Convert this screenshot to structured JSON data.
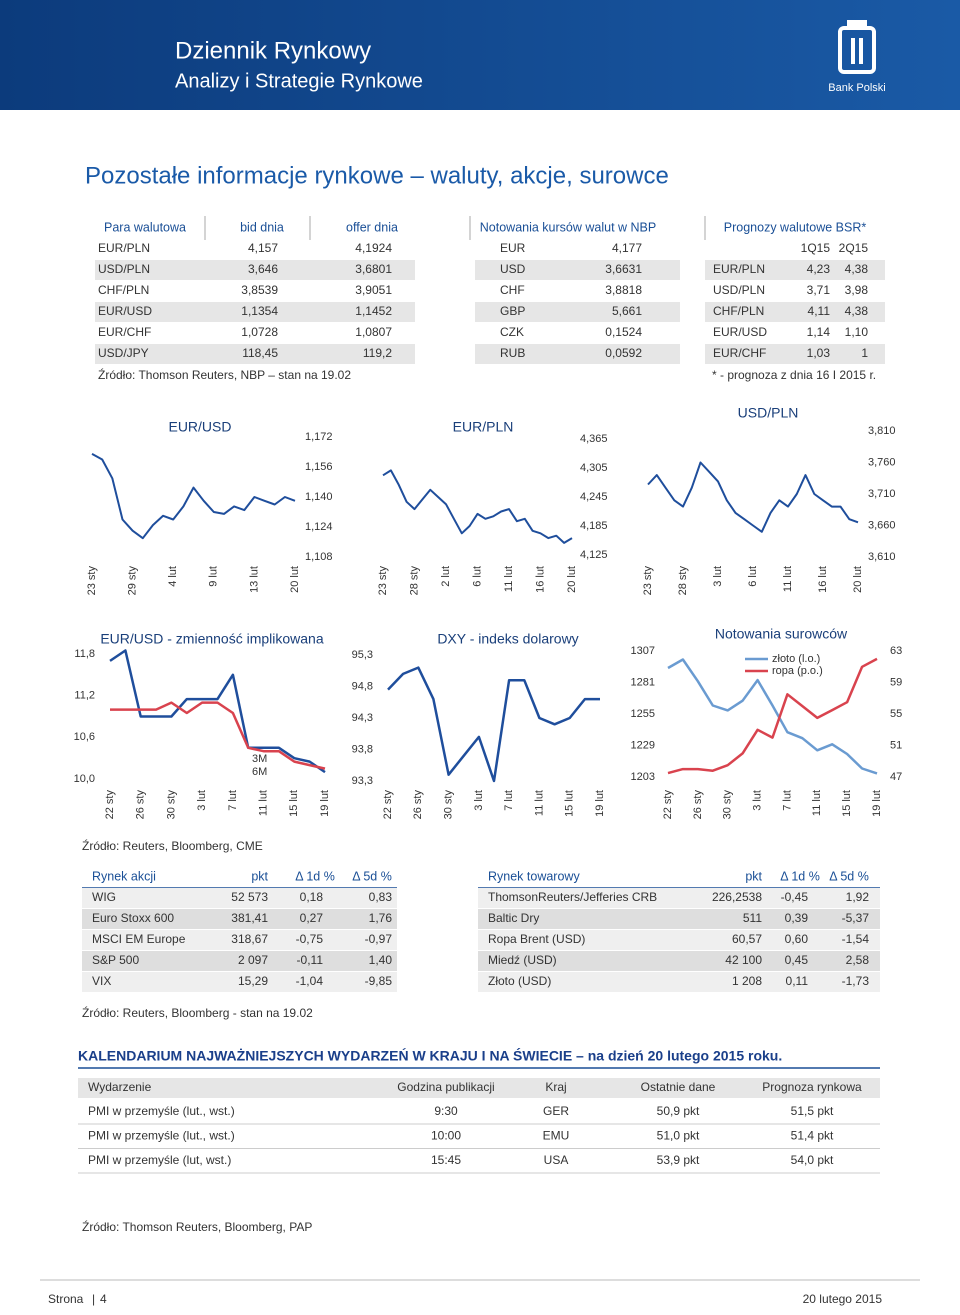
{
  "header": {
    "title": "Dziennik Rynkowy",
    "subtitle": "Analizy i Strategie Rynkowe",
    "bank": "Bank Polski"
  },
  "page_title": "Pozostałe informacje rynkowe – waluty, akcje, surowce",
  "fx_table": {
    "columns": [
      "Para walutowa",
      "bid dnia",
      "offer dnia"
    ],
    "rows": [
      [
        "EUR/PLN",
        "4,157",
        "4,1924"
      ],
      [
        "USD/PLN",
        "3,646",
        "3,6801"
      ],
      [
        "CHF/PLN",
        "3,8539",
        "3,9051"
      ],
      [
        "EUR/USD",
        "1,1354",
        "1,1452"
      ],
      [
        "EUR/CHF",
        "1,0728",
        "1,0807"
      ],
      [
        "USD/JPY",
        "118,45",
        "119,2"
      ]
    ]
  },
  "nbp_table": {
    "title": "Notowania kursów walut w NBP",
    "rows": [
      [
        "EUR",
        "4,177"
      ],
      [
        "USD",
        "3,6631"
      ],
      [
        "CHF",
        "3,8818"
      ],
      [
        "GBP",
        "5,661"
      ],
      [
        "CZK",
        "0,1524"
      ],
      [
        "RUB",
        "0,0592"
      ]
    ]
  },
  "forecast_table": {
    "title": "Prognozy walutowe BSR*",
    "columns": [
      "1Q15",
      "2Q15"
    ],
    "rows": [
      [
        "EUR/PLN",
        "4,23",
        "4,38"
      ],
      [
        "USD/PLN",
        "3,71",
        "3,98"
      ],
      [
        "CHF/PLN",
        "4,11",
        "4,38"
      ],
      [
        "EUR/USD",
        "1,14",
        "1,10"
      ],
      [
        "EUR/CHF",
        "1,03",
        "1"
      ]
    ]
  },
  "source_fx": "Źródło: Thomson Reuters, NBP – stan na 19.02",
  "forecast_note": "* - prognoza z dnia 16 I 2015 r.",
  "chart_data": [
    {
      "type": "line",
      "title": "EUR/USD",
      "categories": [
        "23 sty",
        null,
        null,
        null,
        "29 sty",
        null,
        null,
        null,
        "4 lut",
        null,
        null,
        null,
        "9 lut",
        null,
        null,
        null,
        "13 lut",
        null,
        null,
        null,
        "20 lut"
      ],
      "series": [
        {
          "color": "#1f4e9c",
          "values": [
            1.163,
            1.16,
            1.15,
            1.128,
            1.122,
            1.118,
            1.125,
            1.13,
            1.128,
            1.135,
            1.145,
            1.138,
            1.132,
            1.131,
            1.135,
            1.133,
            1.14,
            1.138,
            1.136,
            1.14,
            1.138
          ]
        }
      ],
      "ylim": [
        1.108,
        1.172
      ],
      "yticks": [
        {
          "value": 1.108,
          "label": "1,108"
        },
        {
          "value": 1.124,
          "label": "1,124"
        },
        {
          "value": 1.14,
          "label": "1,140"
        },
        {
          "value": 1.156,
          "label": "1,156"
        },
        {
          "value": 1.172,
          "label": "1,172"
        }
      ]
    },
    {
      "type": "line",
      "title": "EUR/PLN",
      "categories": [
        "23 sty",
        null,
        null,
        null,
        "28 sty",
        null,
        null,
        null,
        "2 lut",
        null,
        null,
        null,
        "6 lut",
        null,
        null,
        null,
        "11 lut",
        null,
        null,
        null,
        "16 lut",
        null,
        null,
        null,
        "20 lut"
      ],
      "series": [
        {
          "color": "#1f4e9c",
          "values": [
            4.29,
            4.3,
            4.27,
            4.235,
            4.22,
            4.24,
            4.26,
            4.245,
            4.23,
            4.2,
            4.17,
            4.185,
            4.21,
            4.2,
            4.205,
            4.215,
            4.22,
            4.195,
            4.2,
            4.175,
            4.17,
            4.16,
            4.165,
            4.15,
            4.16
          ]
        }
      ],
      "ylim": [
        4.125,
        4.365
      ],
      "yticks": [
        {
          "value": 4.125,
          "label": "4,125"
        },
        {
          "value": 4.185,
          "label": "4,185"
        },
        {
          "value": 4.245,
          "label": "4,245"
        },
        {
          "value": 4.305,
          "label": "4,305"
        },
        {
          "value": 4.365,
          "label": "4,365"
        }
      ]
    },
    {
      "type": "line",
      "title": "USD/PLN",
      "categories": [
        "23 sty",
        null,
        null,
        null,
        "28 sty",
        null,
        null,
        null,
        "3 lut",
        null,
        null,
        null,
        "6 lut",
        null,
        null,
        null,
        "11 lut",
        null,
        null,
        null,
        "16 lut",
        null,
        null,
        null,
        "20 lut"
      ],
      "series": [
        {
          "color": "#1f4e9c",
          "values": [
            3.725,
            3.74,
            3.72,
            3.7,
            3.69,
            3.72,
            3.76,
            3.745,
            3.73,
            3.7,
            3.68,
            3.67,
            3.66,
            3.65,
            3.68,
            3.7,
            3.69,
            3.71,
            3.74,
            3.71,
            3.7,
            3.69,
            3.69,
            3.67,
            3.665
          ]
        }
      ],
      "ylim": [
        3.61,
        3.81
      ],
      "yticks": [
        {
          "value": 3.61,
          "label": "3,610"
        },
        {
          "value": 3.66,
          "label": "3,660"
        },
        {
          "value": 3.71,
          "label": "3,710"
        },
        {
          "value": 3.76,
          "label": "3,760"
        },
        {
          "value": 3.81,
          "label": "3,810"
        }
      ]
    },
    {
      "type": "line",
      "title": "EUR/USD - zmienność implikowana",
      "categories": [
        "22 sty",
        null,
        "26 sty",
        null,
        "30 sty",
        null,
        "3 lut",
        null,
        "7 lut",
        null,
        "11 lut",
        null,
        "15 lut",
        null,
        "19 lut"
      ],
      "series": [
        {
          "name": "3M",
          "color": "#1f4e9c",
          "values": [
            11.7,
            11.85,
            10.9,
            10.9,
            10.9,
            11.15,
            11.15,
            11.15,
            11.5,
            10.45,
            10.45,
            10.45,
            10.3,
            10.25,
            10.1
          ]
        },
        {
          "name": "6M",
          "color": "#d9434e",
          "values": [
            11.0,
            11.0,
            11.0,
            11.0,
            11.1,
            10.95,
            11.1,
            11.1,
            10.95,
            10.45,
            10.4,
            10.4,
            10.25,
            10.2,
            10.15
          ]
        }
      ],
      "ylim": [
        10.0,
        11.8
      ],
      "yticks": [
        {
          "value": 10.0,
          "label": "10,0"
        },
        {
          "value": 10.6,
          "label": "10,6"
        },
        {
          "value": 11.2,
          "label": "11,2"
        },
        {
          "value": 11.8,
          "label": "11,8"
        }
      ]
    },
    {
      "type": "line",
      "title": "DXY - indeks dolarowy",
      "categories": [
        "22 sty",
        null,
        "26 sty",
        null,
        "30 sty",
        null,
        "3 lut",
        null,
        "7 lut",
        null,
        "11 lut",
        null,
        "15 lut",
        null,
        "19 lut"
      ],
      "series": [
        {
          "color": "#1f4e9c",
          "values": [
            94.75,
            95.0,
            95.1,
            94.6,
            93.4,
            93.7,
            94.0,
            93.3,
            94.9,
            94.9,
            94.3,
            94.2,
            94.3,
            94.6,
            94.6
          ]
        }
      ],
      "ylim": [
        93.3,
        95.3
      ],
      "yticks": [
        {
          "value": 93.3,
          "label": "93,3"
        },
        {
          "value": 93.8,
          "label": "93,8"
        },
        {
          "value": 94.3,
          "label": "94,3"
        },
        {
          "value": 94.8,
          "label": "94,8"
        },
        {
          "value": 95.3,
          "label": "95,3"
        }
      ]
    },
    {
      "type": "line",
      "title": "Notowania surowców",
      "categories": [
        "22 sty",
        null,
        "26 sty",
        null,
        "30 sty",
        null,
        "3 lut",
        null,
        "7 lut",
        null,
        "11 lut",
        null,
        "15 lut",
        null,
        "19 lut"
      ],
      "series": [
        {
          "name": "złoto (l.o.)",
          "color": "#6a9bd1",
          "values": [
            1293,
            1300,
            1282,
            1262,
            1258,
            1266,
            1283,
            1262,
            1240,
            1235,
            1225,
            1230,
            1222,
            1210,
            1206
          ]
        },
        {
          "name": "ropa (p.o.)",
          "color": "#d9434e",
          "axis": "y2",
          "values": [
            47.5,
            48.0,
            48.0,
            47.8,
            48.5,
            50.0,
            53.0,
            52.0,
            57.5,
            56.0,
            54.5,
            55.5,
            56.5,
            61.0,
            62.0
          ]
        }
      ],
      "ylim": [
        1203,
        1307
      ],
      "yticks": [
        1203,
        1229,
        1255,
        1281,
        1307
      ],
      "y2lim": [
        47,
        63
      ],
      "y2ticks": [
        47,
        51,
        55,
        59,
        63
      ]
    }
  ],
  "source_charts": "Źródło: Reuters, Bloomberg, CME",
  "equity_table": {
    "columns": [
      "Rynek akcji",
      "pkt",
      "Δ 1d %",
      "Δ 5d %"
    ],
    "rows": [
      [
        "WIG",
        "52 573",
        "0,18",
        "0,83"
      ],
      [
        "Euro Stoxx 600",
        "381,41",
        "0,27",
        "1,76"
      ],
      [
        "MSCI EM Europe",
        "318,67",
        "-0,75",
        "-0,97"
      ],
      [
        "S&P 500",
        "2 097",
        "-0,11",
        "1,40"
      ],
      [
        "VIX",
        "15,29",
        "-1,04",
        "-9,85"
      ]
    ]
  },
  "commodity_table": {
    "columns": [
      "Rynek towarowy",
      "pkt",
      "Δ 1d %",
      "Δ 5d %"
    ],
    "rows": [
      [
        "ThomsonReuters/Jefferies CRB",
        "226,2538",
        "-0,45",
        "1,92"
      ],
      [
        "Baltic Dry",
        "511",
        "0,39",
        "-5,37"
      ],
      [
        "Ropa Brent (USD)",
        "60,57",
        "0,60",
        "-1,54"
      ],
      [
        "Miedź (USD)",
        "42 100",
        "0,45",
        "2,58"
      ],
      [
        "Złoto (USD)",
        "1 208",
        "0,11",
        "-1,73"
      ]
    ]
  },
  "source_markets": "Źródło: Reuters, Bloomberg - stan na 19.02",
  "calendar": {
    "title": "KALENDARIUM NAJWAŻNIEJSZYCH WYDARZEŃ W KRAJU I NA ŚWIECIE – na dzień 20 lutego 2015 roku.",
    "columns": [
      "Wydarzenie",
      "Godzina publikacji",
      "Kraj",
      "Ostatnie dane",
      "Prognoza rynkowa"
    ],
    "rows": [
      [
        "PMI w przemyśle (lut., wst.)",
        "9:30",
        "GER",
        "50,9 pkt",
        "51,5 pkt"
      ],
      [
        "PMI w przemyśle (lut., wst.)",
        "10:00",
        "EMU",
        "51,0 pkt",
        "51,4 pkt"
      ],
      [
        "PMI w przemyśle (lut, wst.)",
        "15:45",
        "USA",
        "53,9 pkt",
        "54,0 pkt"
      ]
    ]
  },
  "source_calendar": "Źródło: Thomson Reuters, Bloomberg, PAP",
  "footer": {
    "page_label": "Strona",
    "page_number": "4",
    "date": "20 lutego 2015"
  }
}
